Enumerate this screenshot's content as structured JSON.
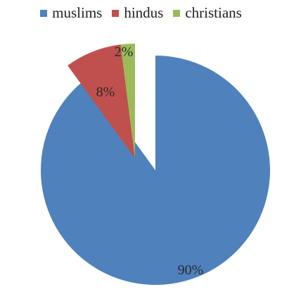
{
  "chart_data": {
    "type": "pie",
    "legend_position": "top",
    "slices": [
      {
        "name": "muslims",
        "value": 90,
        "label": "90%",
        "color": "#4f81bd"
      },
      {
        "name": "hindus",
        "value": 8,
        "label": "8%",
        "color": "#c0504d"
      },
      {
        "name": "christians",
        "value": 2,
        "label": "2%",
        "color": "#9bbb59"
      }
    ]
  }
}
